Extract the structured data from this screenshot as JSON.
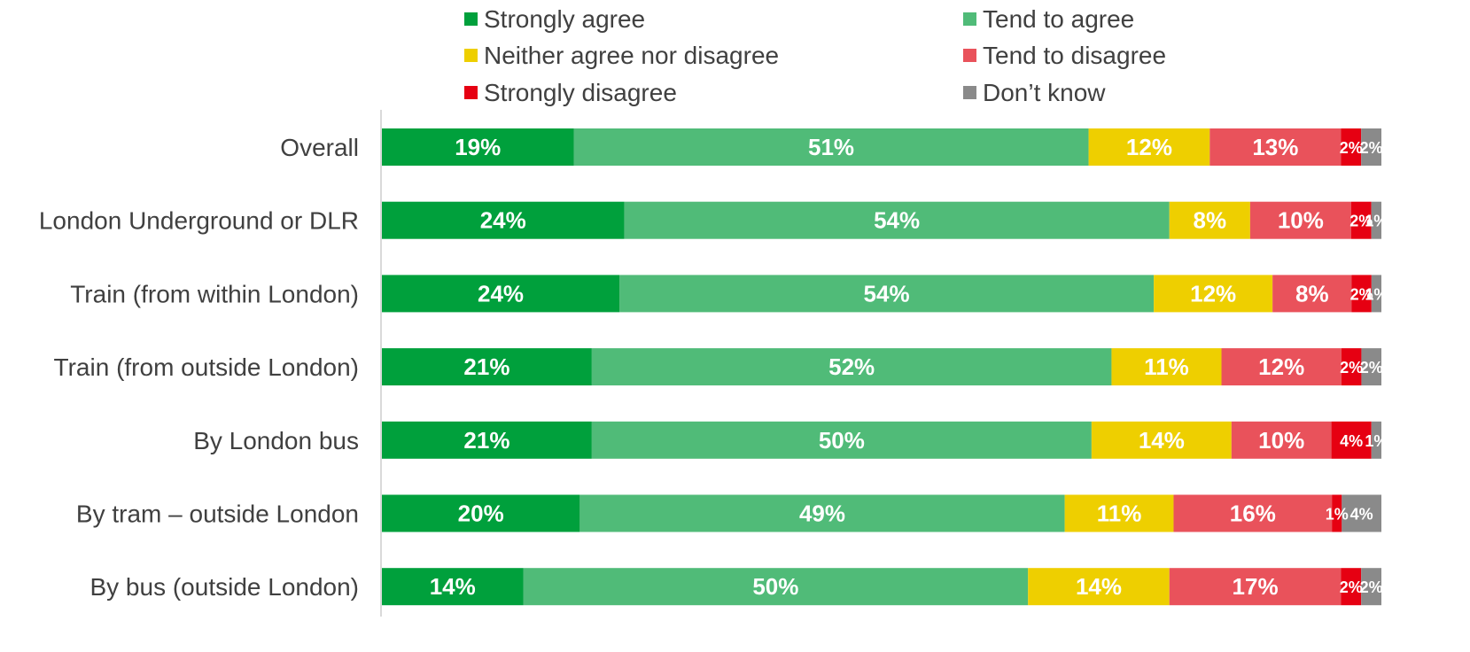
{
  "chart_data": {
    "type": "bar",
    "orientation": "horizontal",
    "stacked": "100%",
    "title": "",
    "xlabel": "",
    "ylabel": "",
    "xlim": [
      0,
      100
    ],
    "grid": false,
    "legend_position": "top",
    "categories": [
      "Overall",
      "London Underground or DLR",
      "Train (from within London)",
      "Train (from outside London)",
      "By London bus",
      "By tram – outside London",
      "By bus (outside London)"
    ],
    "series": [
      {
        "name": "Strongly agree",
        "color": "#00a03c",
        "values": [
          19,
          24,
          24,
          21,
          21,
          20,
          14
        ]
      },
      {
        "name": "Tend to agree",
        "color": "#50bb78",
        "values": [
          51,
          54,
          54,
          52,
          50,
          49,
          50
        ]
      },
      {
        "name": "Neither agree nor disagree",
        "color": "#eecf00",
        "values": [
          12,
          8,
          12,
          11,
          14,
          11,
          14
        ]
      },
      {
        "name": "Tend to disagree",
        "color": "#e9525b",
        "values": [
          13,
          10,
          8,
          12,
          10,
          16,
          17
        ]
      },
      {
        "name": "Strongly disagree",
        "color": "#e60012",
        "values": [
          2,
          2,
          2,
          2,
          4,
          1,
          2
        ]
      },
      {
        "name": "Don’t know",
        "color": "#8a8a8a",
        "values": [
          2,
          1,
          1,
          2,
          1,
          4,
          2
        ]
      }
    ],
    "value_suffix": "%"
  }
}
